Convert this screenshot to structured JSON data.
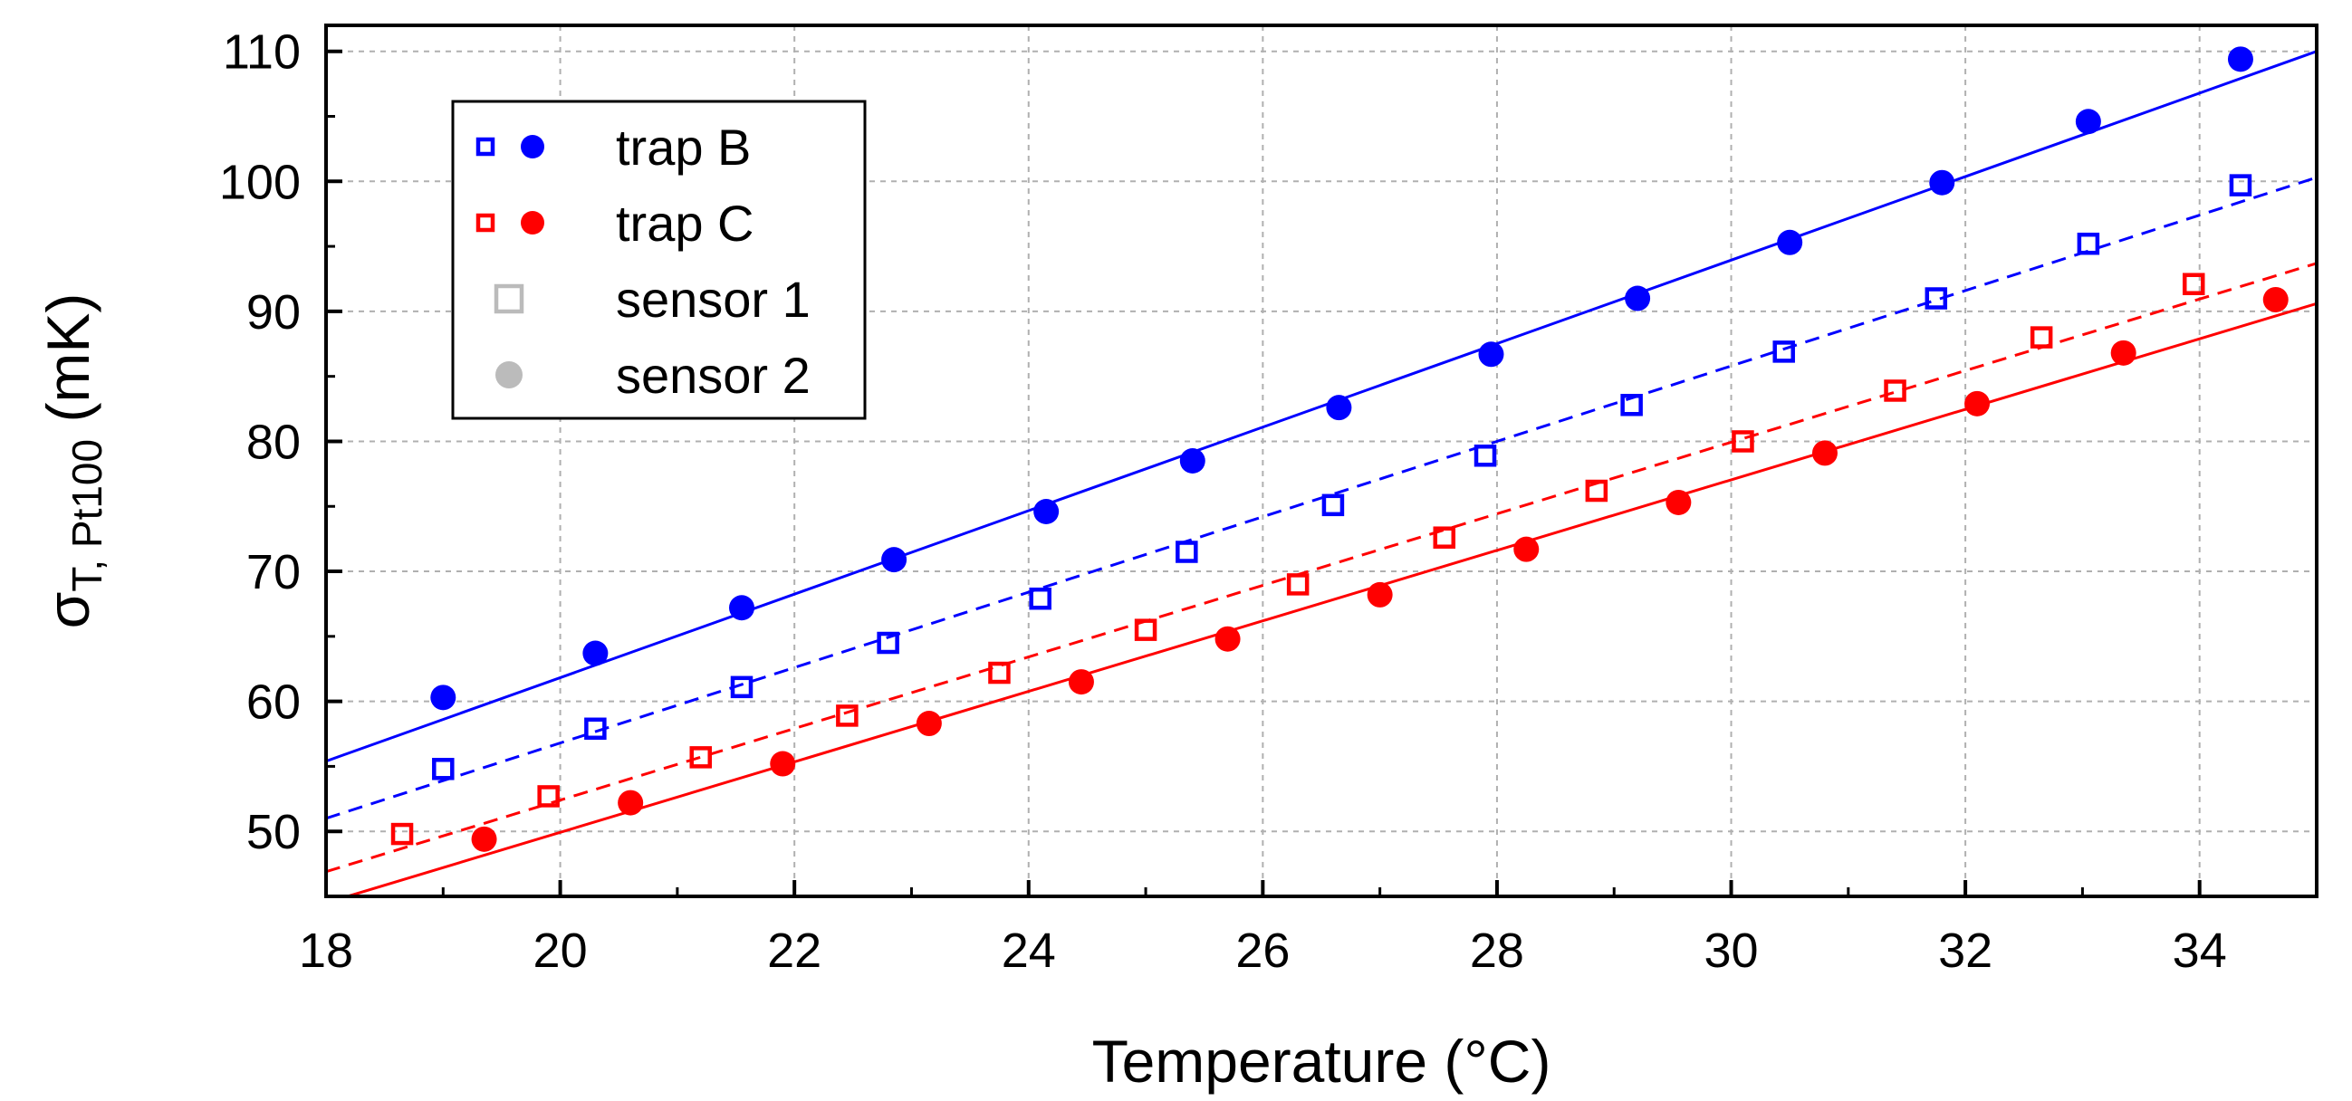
{
  "chart_data": {
    "type": "scatter",
    "xlabel": "Temperature (°C)",
    "ylabel": {
      "symbol": "σ",
      "subscript": "T, Pt100",
      "unit": " (mK)"
    },
    "xlim": [
      18,
      35
    ],
    "ylim": [
      45,
      112
    ],
    "xticks": [
      18,
      20,
      22,
      24,
      26,
      28,
      30,
      32,
      34
    ],
    "yticks": [
      50,
      60,
      70,
      80,
      90,
      100,
      110
    ],
    "grid": true,
    "legend_position": "top-left",
    "legend": [
      {
        "label": "trap B",
        "color": "#0000ff",
        "markers": [
          "square-open",
          "circle-filled"
        ]
      },
      {
        "label": "trap C",
        "color": "#ff0000",
        "markers": [
          "square-open",
          "circle-filled"
        ]
      },
      {
        "label": "sensor 1",
        "color": "#bbbbbb",
        "markers": [
          "square-open"
        ]
      },
      {
        "label": "sensor 2",
        "color": "#bbbbbb",
        "markers": [
          "circle-filled"
        ]
      }
    ],
    "series": [
      {
        "name": "trap B, sensor 1",
        "color": "#0000ff",
        "marker": "square-open",
        "points": [
          [
            19.0,
            54.8
          ],
          [
            20.3,
            57.9
          ],
          [
            21.55,
            61.1
          ],
          [
            22.8,
            64.5
          ],
          [
            24.1,
            67.9
          ],
          [
            25.35,
            71.5
          ],
          [
            26.6,
            75.1
          ],
          [
            27.9,
            78.9
          ],
          [
            29.15,
            82.8
          ],
          [
            30.45,
            86.9
          ],
          [
            31.75,
            91.0
          ],
          [
            33.05,
            95.2
          ],
          [
            34.35,
            99.7
          ]
        ],
        "fit": {
          "style": "dashed",
          "x": [
            18,
            35
          ],
          "y": [
            51.0,
            100.3
          ]
        }
      },
      {
        "name": "trap B, sensor 2",
        "color": "#0000ff",
        "marker": "circle-filled",
        "points": [
          [
            19.0,
            60.3
          ],
          [
            20.3,
            63.7
          ],
          [
            21.55,
            67.2
          ],
          [
            22.85,
            70.9
          ],
          [
            24.15,
            74.6
          ],
          [
            25.4,
            78.5
          ],
          [
            26.65,
            82.6
          ],
          [
            27.95,
            86.7
          ],
          [
            29.2,
            91.0
          ],
          [
            30.5,
            95.3
          ],
          [
            31.8,
            99.9
          ],
          [
            33.05,
            104.6
          ],
          [
            34.35,
            109.4
          ]
        ],
        "fit": {
          "style": "solid",
          "x": [
            18,
            35
          ],
          "y": [
            55.4,
            110.0
          ]
        }
      },
      {
        "name": "trap C, sensor 1",
        "color": "#ff0000",
        "marker": "square-open",
        "points": [
          [
            18.65,
            49.8
          ],
          [
            19.9,
            52.7
          ],
          [
            21.2,
            55.7
          ],
          [
            22.45,
            58.9
          ],
          [
            23.75,
            62.2
          ],
          [
            25.0,
            65.5
          ],
          [
            26.3,
            69.0
          ],
          [
            27.55,
            72.6
          ],
          [
            28.85,
            76.2
          ],
          [
            30.1,
            80.0
          ],
          [
            31.4,
            83.9
          ],
          [
            32.65,
            88.0
          ],
          [
            33.95,
            92.1
          ]
        ],
        "fit": {
          "style": "dashed",
          "x": [
            18,
            35
          ],
          "y": [
            46.9,
            93.7
          ]
        }
      },
      {
        "name": "trap C, sensor 2",
        "color": "#ff0000",
        "marker": "circle-filled",
        "points": [
          [
            19.35,
            49.4
          ],
          [
            20.6,
            52.2
          ],
          [
            21.9,
            55.2
          ],
          [
            23.15,
            58.3
          ],
          [
            24.45,
            61.5
          ],
          [
            25.7,
            64.8
          ],
          [
            27.0,
            68.2
          ],
          [
            28.25,
            71.7
          ],
          [
            29.55,
            75.3
          ],
          [
            30.8,
            79.1
          ],
          [
            32.1,
            82.9
          ],
          [
            33.35,
            86.8
          ],
          [
            34.65,
            90.9
          ]
        ],
        "fit": {
          "style": "solid",
          "x": [
            18,
            35
          ],
          "y": [
            44.5,
            90.6
          ]
        }
      }
    ]
  }
}
